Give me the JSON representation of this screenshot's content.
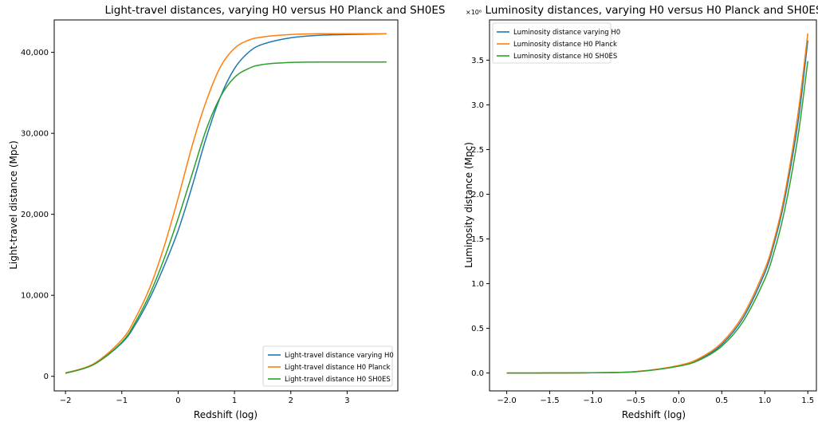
{
  "chart_data": [
    {
      "type": "line",
      "title": "Light-travel distances, varying H0 versus H0 Planck and SH0ES",
      "xlabel": "Redshift (log)",
      "ylabel": "Light-travel distance (Mpc)",
      "xlim": [
        -2.2,
        3.9
      ],
      "ylim": [
        -1800,
        44000
      ],
      "xticks": [
        -2,
        -1,
        0,
        1,
        2,
        3
      ],
      "xtick_labels": [
        "−2",
        "−1",
        "0",
        "1",
        "2",
        "3"
      ],
      "yticks": [
        0,
        10000,
        20000,
        30000,
        40000
      ],
      "ytick_labels": [
        "0",
        "10,000",
        "20,000",
        "30,000",
        "40,000"
      ],
      "legend_position": "lower-right",
      "series": [
        {
          "name": "Light-travel distance varying H0",
          "color": "#1f77b4",
          "x": [
            -2,
            -1.5,
            -1,
            -0.75,
            -0.5,
            -0.25,
            0,
            0.25,
            0.5,
            0.75,
            1,
            1.25,
            1.5,
            2,
            2.5,
            3,
            3.7
          ],
          "y": [
            380,
            1450,
            4100,
            6500,
            9700,
            13600,
            18000,
            23500,
            29500,
            34500,
            38000,
            40000,
            41000,
            41800,
            42100,
            42200,
            42300
          ]
        },
        {
          "name": "Light-travel distance H0 Planck",
          "color": "#ff7f0e",
          "x": [
            -2,
            -1.5,
            -1,
            -0.75,
            -0.5,
            -0.25,
            0,
            0.25,
            0.5,
            0.75,
            1,
            1.25,
            1.5,
            2,
            2.5,
            3,
            3.7
          ],
          "y": [
            420,
            1550,
            4500,
            7300,
            11000,
            16000,
            22000,
            28500,
            34000,
            38200,
            40500,
            41500,
            41900,
            42200,
            42300,
            42300,
            42300
          ]
        },
        {
          "name": "Light-travel distance H0 SH0ES",
          "color": "#2ca02c",
          "x": [
            -2,
            -1.5,
            -1,
            -0.75,
            -0.5,
            -0.25,
            0,
            0.25,
            0.5,
            0.75,
            1,
            1.25,
            1.5,
            2,
            2.5,
            3,
            3.7
          ],
          "y": [
            380,
            1450,
            4200,
            6800,
            10200,
            14500,
            19500,
            25000,
            30500,
            34500,
            36900,
            38000,
            38500,
            38750,
            38800,
            38800,
            38800
          ]
        }
      ]
    },
    {
      "type": "line",
      "title": "Luminosity distances, varying H0 versus H0 Planck and SH0ES",
      "xlabel": "Redshift (log)",
      "ylabel": "Luminosity distance (Mpc)",
      "scale_label": "×10⁶",
      "xlim": [
        -2.2,
        1.6
      ],
      "ylim": [
        -0.2,
        3.95
      ],
      "xticks": [
        -2,
        -1.5,
        -1,
        -0.5,
        0,
        0.5,
        1,
        1.5
      ],
      "xtick_labels": [
        "−2.0",
        "−1.5",
        "−1.0",
        "−0.5",
        "0.0",
        "0.5",
        "1.0",
        "1.5"
      ],
      "yticks": [
        0,
        0.5,
        1,
        1.5,
        2,
        2.5,
        3,
        3.5
      ],
      "ytick_labels": [
        "0.0",
        "0.5",
        "1.0",
        "1.5",
        "2.0",
        "2.5",
        "3.0",
        "3.5"
      ],
      "legend_position": "top-left",
      "series": [
        {
          "name": "Luminosity distance varying H0",
          "color": "#1f77b4",
          "x": [
            -2,
            -1.5,
            -1,
            -0.5,
            0,
            0.25,
            0.5,
            0.75,
            1,
            1.1,
            1.2,
            1.3,
            1.4,
            1.5
          ],
          "y": [
            0,
            0.0006,
            0.003,
            0.015,
            0.08,
            0.16,
            0.32,
            0.62,
            1.12,
            1.42,
            1.8,
            2.3,
            2.9,
            3.72
          ]
        },
        {
          "name": "Luminosity distance H0 Planck",
          "color": "#ff7f0e",
          "x": [
            -2,
            -1.5,
            -1,
            -0.5,
            0,
            0.25,
            0.5,
            0.75,
            1,
            1.1,
            1.2,
            1.3,
            1.4,
            1.5
          ],
          "y": [
            0,
            0.0006,
            0.003,
            0.016,
            0.085,
            0.17,
            0.34,
            0.65,
            1.16,
            1.46,
            1.85,
            2.37,
            3.0,
            3.8
          ]
        },
        {
          "name": "Luminosity distance H0 SH0ES",
          "color": "#2ca02c",
          "x": [
            -2,
            -1.5,
            -1,
            -0.5,
            0,
            0.25,
            0.5,
            0.75,
            1,
            1.1,
            1.2,
            1.3,
            1.4,
            1.5
          ],
          "y": [
            0,
            0.0005,
            0.003,
            0.014,
            0.076,
            0.15,
            0.3,
            0.58,
            1.05,
            1.33,
            1.69,
            2.16,
            2.74,
            3.49
          ]
        }
      ]
    }
  ]
}
